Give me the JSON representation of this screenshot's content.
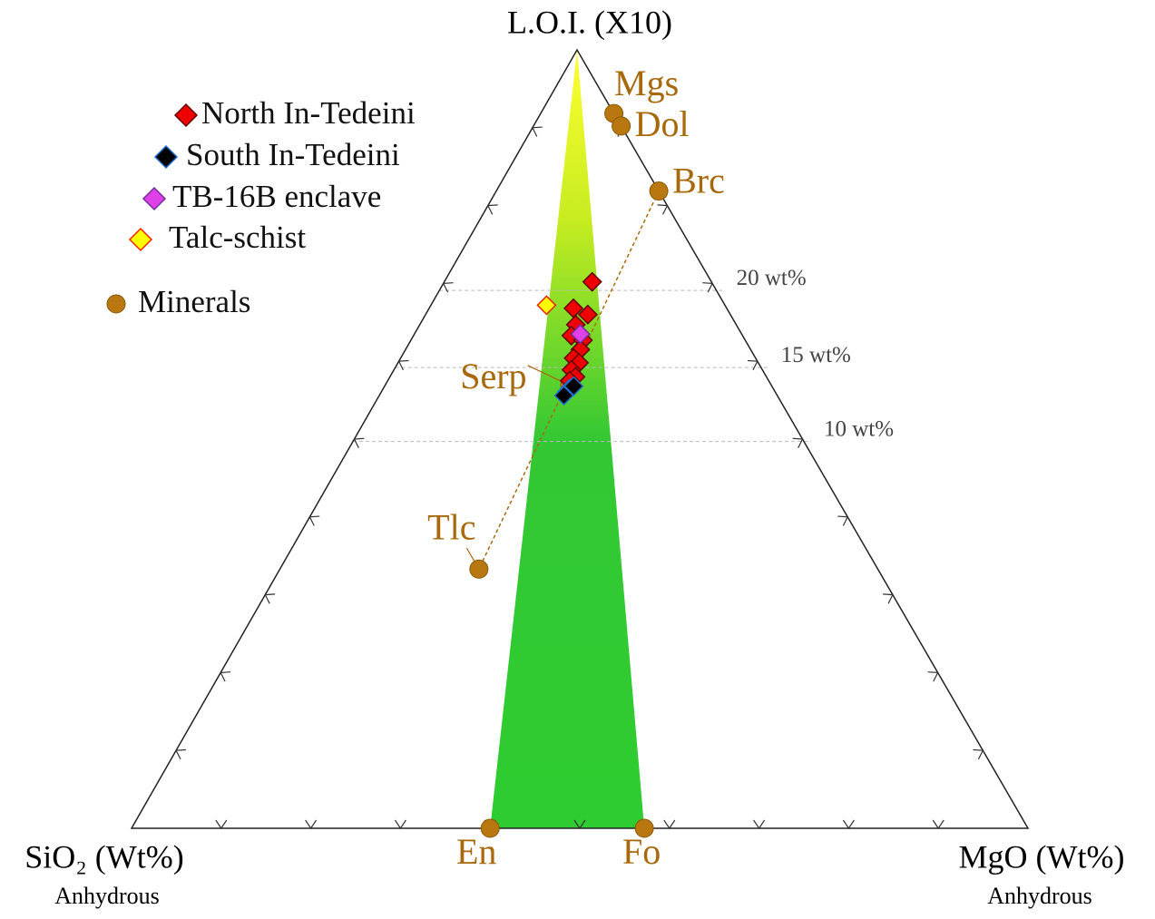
{
  "chart_data": {
    "type": "ternary",
    "apex_labels": {
      "top": "L.O.I. (X10)",
      "left": "SiO₂ (Wt%)",
      "right": "MgO (Wt%)"
    },
    "apex_sublabels": {
      "left": "Anhydrous",
      "right": "Anhydrous"
    },
    "ticks": [
      10,
      20,
      30,
      40,
      50,
      60,
      70,
      80,
      90
    ],
    "loi_guides": [
      {
        "value": 69.1,
        "label": "20 wt%"
      },
      {
        "value": 59.2,
        "label": "15 wt%"
      },
      {
        "value": 49.7,
        "label": "10 wt%"
      }
    ],
    "series": [
      {
        "name": "North In-Tedeini",
        "marker": "diamond",
        "color": "#ee0000",
        "edge": "#600000",
        "loi": [
          70.2,
          66.8,
          66.0,
          64.7,
          63.3,
          62.7,
          61.5,
          60.4,
          59.8,
          58.9,
          58.0,
          57.5
        ],
        "mgo": [
          16.5,
          16.1,
          18.1,
          17.4,
          17.6,
          19.2,
          19.5,
          19.3,
          20.2,
          19.8,
          20.7,
          20.3
        ],
        "sio2": [
          13.3,
          17.1,
          15.9,
          17.9,
          19.1,
          18.1,
          19.0,
          20.3,
          20.0,
          21.3,
          21.3,
          22.2
        ]
      },
      {
        "name": "South In-Tedeini",
        "marker": "diamond",
        "color": "#000000",
        "edge": "#1e6fd0",
        "loi": [
          56.1,
          56.5,
          55.6,
          56.8
        ],
        "mgo": [
          20.7,
          20.8,
          20.6,
          21.1
        ],
        "sio2": [
          23.2,
          22.7,
          23.8,
          22.1
        ]
      },
      {
        "name": "TB-16B enclave",
        "marker": "diamond",
        "color": "#e040e8",
        "edge": "#7030a0",
        "loi": [
          63.5
        ],
        "mgo": [
          18.5
        ],
        "sio2": [
          18.0
        ]
      },
      {
        "name": "Talc-schist",
        "marker": "diamond",
        "color": "#ffff00",
        "edge": "#ee2200",
        "loi": [
          67.2
        ],
        "mgo": [
          12.9
        ],
        "sio2": [
          19.9
        ]
      },
      {
        "name": "Minerals",
        "marker": "circle",
        "color": "#b8780f",
        "edge": "#8a5a0a",
        "labels": [
          "Mgs",
          "Dol",
          "Brc",
          "Tlc",
          "Serp",
          "En",
          "Fo"
        ],
        "loi": [
          92.2,
          90.4,
          82.2,
          33.3,
          56.9,
          0,
          0
        ],
        "mgo": [
          8.2,
          9.8,
          18.2,
          22.2,
          20.6,
          40.0,
          57.2
        ],
        "sio2": [
          0,
          0,
          0,
          44.5,
          22.5,
          60.0,
          42.8
        ]
      }
    ]
  }
}
